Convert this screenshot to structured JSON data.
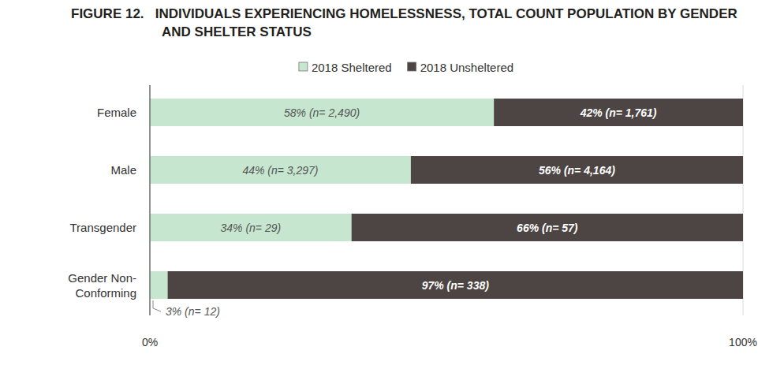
{
  "chart_data": {
    "type": "bar",
    "orientation": "horizontal",
    "stacked": true,
    "data_labels": true,
    "grid": true,
    "legend": "top",
    "title": "FIGURE 12.   INDIVIDUALS EXPERIENCING HOMELESSNESS, TOTAL COUNT POPULATION BY GENDER AND SHELTER STATUS",
    "categories": [
      "Female",
      "Male",
      "Transgender",
      "Gender Non-Conforming"
    ],
    "series": [
      {
        "name": "2018 Sheltered",
        "color": "#c6e6cf",
        "values": [
          58,
          44,
          34,
          3
        ],
        "value_labels": [
          "58% (n= 2,490)",
          "44% (n= 3,297)",
          "34% (n= 29)",
          "3% (n= 12)"
        ]
      },
      {
        "name": "2018 Unsheltered",
        "color": "#4d4543",
        "values": [
          42,
          56,
          66,
          97
        ],
        "value_labels": [
          "42% (n= 1,761)",
          "56% (n= 4,164)",
          "66% (n= 57)",
          "97% (n= 338)"
        ]
      }
    ],
    "xlim": [
      0,
      100
    ],
    "xticks": [
      {
        "value": 0,
        "label": "0%"
      },
      {
        "value": 100,
        "label": "100%"
      }
    ]
  }
}
